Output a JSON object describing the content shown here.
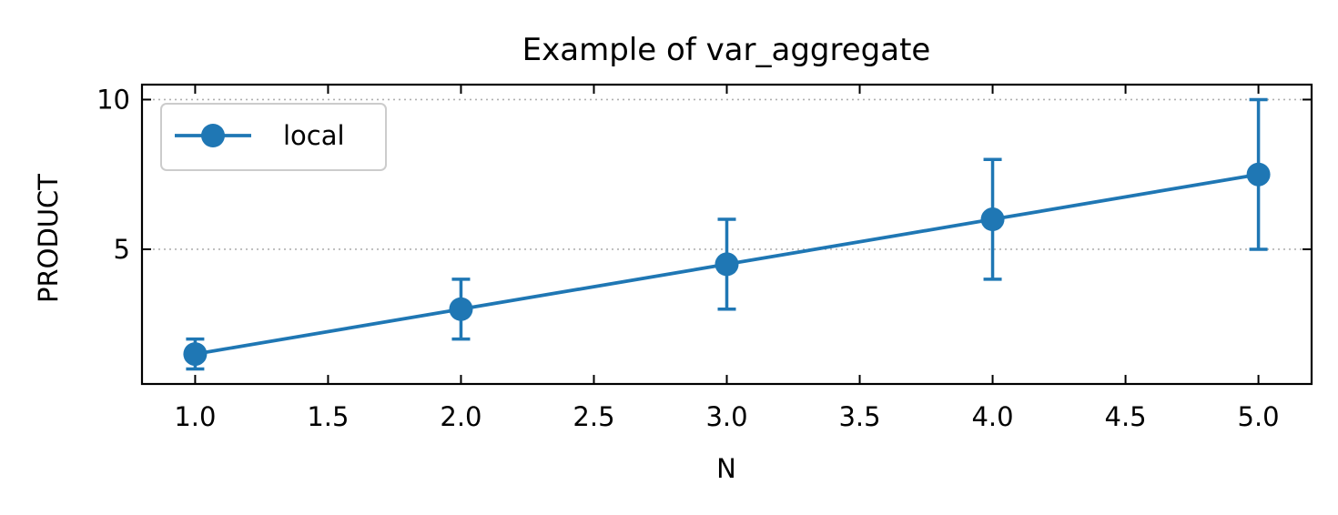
{
  "chart_data": {
    "type": "line",
    "title": "Example of var_aggregate",
    "xlabel": "N",
    "ylabel": "PRODUCT",
    "xlim": [
      0.8,
      5.2
    ],
    "ylim": [
      0.5,
      10.5
    ],
    "x_ticks": [
      1.0,
      1.5,
      2.0,
      2.5,
      3.0,
      3.5,
      4.0,
      4.5,
      5.0
    ],
    "x_tick_labels": [
      "1.0",
      "1.5",
      "2.0",
      "2.5",
      "3.0",
      "3.5",
      "4.0",
      "4.5",
      "5.0"
    ],
    "y_ticks": [
      5,
      10
    ],
    "y_tick_labels": [
      "5",
      "10"
    ],
    "grid": "y-dotted",
    "legend_position": "upper-left",
    "series": [
      {
        "name": "local",
        "color": "#1f77b4",
        "marker": "circle",
        "x": [
          1,
          2,
          3,
          4,
          5
        ],
        "y": [
          1.5,
          3.0,
          4.5,
          6.0,
          7.5
        ],
        "yerr_low": [
          1.0,
          2.0,
          3.0,
          4.0,
          5.0
        ],
        "yerr_high": [
          2.0,
          4.0,
          6.0,
          8.0,
          10.0
        ]
      }
    ]
  }
}
